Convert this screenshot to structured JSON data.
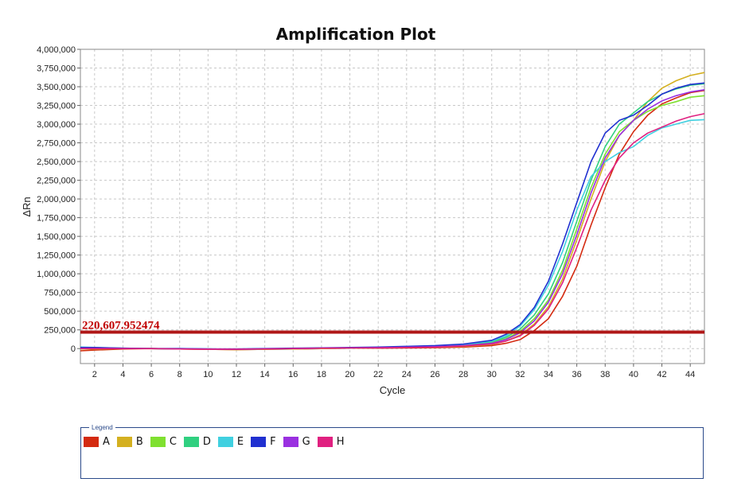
{
  "chart_data": {
    "type": "line",
    "title": "Amplification Plot",
    "xlabel": "Cycle",
    "ylabel": "ΔRn",
    "xlim": [
      1,
      45
    ],
    "ylim": [
      -200000,
      4000000
    ],
    "xticks": [
      2,
      4,
      6,
      8,
      10,
      12,
      14,
      16,
      18,
      20,
      22,
      24,
      26,
      28,
      30,
      32,
      34,
      36,
      38,
      40,
      42,
      44
    ],
    "yticks": [
      0,
      250000,
      500000,
      750000,
      1000000,
      1250000,
      1500000,
      1750000,
      2000000,
      2250000,
      2500000,
      2750000,
      3000000,
      3250000,
      3500000,
      3750000,
      4000000
    ],
    "ytick_labels": [
      "0",
      "250,000",
      "500,000",
      "750,000",
      "1,000,000",
      "1,250,000",
      "1,500,000",
      "1,750,000",
      "2,000,000",
      "2,250,000",
      "2,500,000",
      "2,750,000",
      "3,000,000",
      "3,250,000",
      "3,500,000",
      "3,750,000",
      "4,000,000"
    ],
    "grid": true,
    "threshold": {
      "value": 220607.952474,
      "label": "220,607.952474",
      "color": "#b01818"
    },
    "series": [
      {
        "name": "A",
        "color": "#d42a10",
        "x": [
          1,
          2,
          4,
          6,
          8,
          10,
          12,
          14,
          16,
          18,
          20,
          22,
          24,
          26,
          28,
          30,
          31,
          32,
          33,
          34,
          35,
          36,
          37,
          38,
          39,
          40,
          41,
          42,
          43,
          44,
          45
        ],
        "y": [
          -30000,
          -20000,
          -5000,
          0,
          -5000,
          -10000,
          -15000,
          -10000,
          -5000,
          0,
          5000,
          5000,
          8000,
          12000,
          20000,
          40000,
          70000,
          120000,
          240000,
          400000,
          700000,
          1100000,
          1650000,
          2150000,
          2600000,
          2900000,
          3120000,
          3270000,
          3350000,
          3420000,
          3450000
        ]
      },
      {
        "name": "B",
        "color": "#d4b020",
        "x": [
          1,
          2,
          4,
          6,
          8,
          10,
          12,
          14,
          16,
          18,
          20,
          22,
          24,
          26,
          28,
          30,
          31,
          32,
          33,
          34,
          35,
          36,
          37,
          38,
          39,
          40,
          41,
          42,
          43,
          44,
          45
        ],
        "y": [
          -5000,
          -5000,
          0,
          0,
          -5000,
          -10000,
          -15000,
          -10000,
          -5000,
          0,
          5000,
          10000,
          15000,
          20000,
          30000,
          55000,
          100000,
          180000,
          330000,
          560000,
          930000,
          1450000,
          2000000,
          2500000,
          2850000,
          3050000,
          3300000,
          3480000,
          3580000,
          3650000,
          3690000
        ]
      },
      {
        "name": "C",
        "color": "#7fe030",
        "x": [
          1,
          2,
          4,
          6,
          8,
          10,
          12,
          14,
          16,
          18,
          20,
          22,
          24,
          26,
          28,
          30,
          31,
          32,
          33,
          34,
          35,
          36,
          37,
          38,
          39,
          40,
          41,
          42,
          43,
          44,
          45
        ],
        "y": [
          0,
          0,
          0,
          0,
          -5000,
          -5000,
          -10000,
          -5000,
          0,
          5000,
          10000,
          15000,
          20000,
          30000,
          45000,
          80000,
          130000,
          230000,
          400000,
          650000,
          1050000,
          1600000,
          2150000,
          2600000,
          2900000,
          3050000,
          3170000,
          3250000,
          3300000,
          3360000,
          3380000
        ]
      },
      {
        "name": "D",
        "color": "#30d080",
        "x": [
          1,
          2,
          4,
          6,
          8,
          10,
          12,
          14,
          16,
          18,
          20,
          22,
          24,
          26,
          28,
          30,
          31,
          32,
          33,
          34,
          35,
          36,
          37,
          38,
          39,
          40,
          41,
          42,
          43,
          44,
          45
        ],
        "y": [
          10000,
          10000,
          0,
          0,
          -5000,
          -5000,
          -10000,
          -5000,
          0,
          5000,
          10000,
          15000,
          20000,
          30000,
          50000,
          90000,
          150000,
          260000,
          450000,
          730000,
          1150000,
          1700000,
          2250000,
          2700000,
          3000000,
          3150000,
          3300000,
          3400000,
          3470000,
          3520000,
          3540000
        ]
      },
      {
        "name": "E",
        "color": "#40d0e0",
        "x": [
          1,
          2,
          4,
          6,
          8,
          10,
          12,
          14,
          16,
          18,
          20,
          22,
          24,
          26,
          28,
          30,
          31,
          32,
          33,
          34,
          35,
          36,
          37,
          38,
          39,
          40,
          41,
          42,
          43,
          44,
          45
        ],
        "y": [
          20000,
          15000,
          5000,
          0,
          0,
          -5000,
          -10000,
          -5000,
          0,
          5000,
          10000,
          15000,
          25000,
          35000,
          55000,
          100000,
          170000,
          300000,
          520000,
          850000,
          1300000,
          1850000,
          2300000,
          2500000,
          2620000,
          2700000,
          2850000,
          2950000,
          3000000,
          3050000,
          3060000
        ]
      },
      {
        "name": "F",
        "color": "#2030d0",
        "x": [
          1,
          2,
          4,
          6,
          8,
          10,
          12,
          14,
          16,
          18,
          20,
          22,
          24,
          26,
          28,
          30,
          31,
          32,
          33,
          34,
          35,
          36,
          37,
          38,
          39,
          40,
          41,
          42,
          43,
          44,
          45
        ],
        "y": [
          15000,
          15000,
          5000,
          0,
          0,
          -5000,
          -5000,
          0,
          5000,
          10000,
          15000,
          20000,
          30000,
          40000,
          60000,
          110000,
          190000,
          320000,
          550000,
          900000,
          1400000,
          1950000,
          2500000,
          2880000,
          3050000,
          3120000,
          3250000,
          3400000,
          3480000,
          3530000,
          3550000
        ]
      },
      {
        "name": "G",
        "color": "#9a30e0",
        "x": [
          1,
          2,
          4,
          6,
          8,
          10,
          12,
          14,
          16,
          18,
          20,
          22,
          24,
          26,
          28,
          30,
          31,
          32,
          33,
          34,
          35,
          36,
          37,
          38,
          39,
          40,
          41,
          42,
          43,
          44,
          45
        ],
        "y": [
          0,
          0,
          0,
          0,
          -5000,
          -5000,
          -10000,
          -5000,
          0,
          5000,
          10000,
          12000,
          18000,
          25000,
          40000,
          70000,
          120000,
          210000,
          370000,
          620000,
          1000000,
          1520000,
          2080000,
          2550000,
          2850000,
          3050000,
          3200000,
          3310000,
          3380000,
          3430000,
          3460000
        ]
      },
      {
        "name": "H",
        "color": "#e02080",
        "x": [
          1,
          2,
          4,
          6,
          8,
          10,
          12,
          14,
          16,
          18,
          20,
          22,
          24,
          26,
          28,
          30,
          31,
          32,
          33,
          34,
          35,
          36,
          37,
          38,
          39,
          40,
          41,
          42,
          43,
          44,
          45
        ],
        "y": [
          0,
          0,
          0,
          0,
          -5000,
          -10000,
          -10000,
          -5000,
          0,
          5000,
          8000,
          10000,
          15000,
          20000,
          35000,
          60000,
          100000,
          170000,
          310000,
          530000,
          880000,
          1350000,
          1850000,
          2250000,
          2550000,
          2750000,
          2880000,
          2960000,
          3040000,
          3100000,
          3140000
        ]
      }
    ]
  },
  "legend": {
    "title": "Legend",
    "items": [
      {
        "label": "A",
        "color": "#d42a10"
      },
      {
        "label": "B",
        "color": "#d4b020"
      },
      {
        "label": "C",
        "color": "#7fe030"
      },
      {
        "label": "D",
        "color": "#30d080"
      },
      {
        "label": "E",
        "color": "#40d0e0"
      },
      {
        "label": "F",
        "color": "#2030d0"
      },
      {
        "label": "G",
        "color": "#9a30e0"
      },
      {
        "label": "H",
        "color": "#e02080"
      }
    ]
  }
}
